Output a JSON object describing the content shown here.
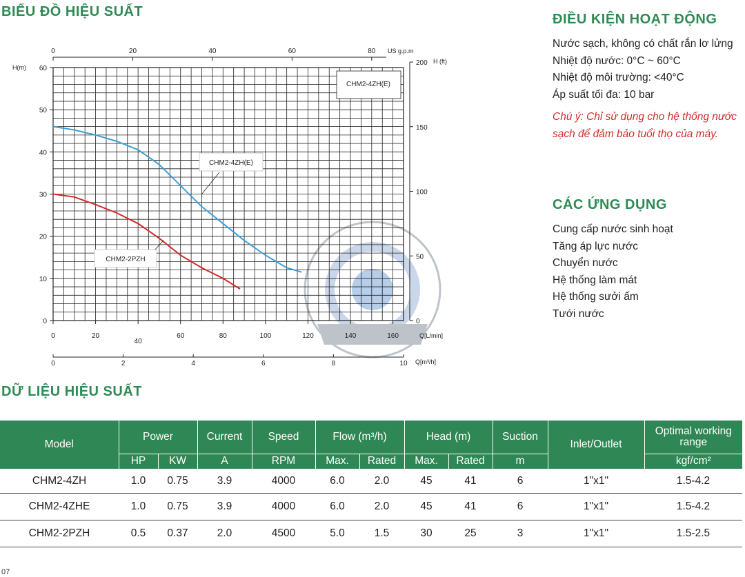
{
  "perf_chart_title": "BIỂU ĐỒ HIỆU SUẤT",
  "perf_data_title": "DỮ LIỆU HIỆU SUẤT",
  "conditions": {
    "title": "ĐIỀU KIỆN HOẠT ĐỘNG",
    "items": [
      "Nước sạch, không có chất rắn lơ lửng",
      "Nhiệt độ nước: 0°C ~ 60°C",
      "Nhiệt độ môi trường: <40°C",
      "Áp suất tối đa: 10 bar"
    ],
    "note": "Chú ý: Chỉ sử dụng cho hệ thống nước sạch để đảm bảo tuổi thọ của máy."
  },
  "applications": {
    "title": "CÁC ỨNG DỤNG",
    "items": [
      "Cung cấp nước sinh hoạt",
      "Tăng áp lực nước",
      "Chuyển nước",
      "Hệ thống làm mát",
      "Hệ thống sưởi ấm",
      "Tưới nước"
    ]
  },
  "chart_data": {
    "type": "line",
    "x_axis_lpm": {
      "label": "Q[L/min]",
      "range": [
        0,
        165
      ],
      "ticks": [
        "0",
        "20",
        "40",
        "60",
        "80",
        "100",
        "120",
        "140",
        "160"
      ]
    },
    "x_axis_m3h": {
      "label": "Q[m³/h]",
      "range": [
        0,
        10
      ],
      "ticks": [
        "0",
        "2",
        "4",
        "6",
        "8",
        "10"
      ]
    },
    "x_axis_usgpm": {
      "label": "US g.p.m",
      "range": [
        0,
        80
      ],
      "ticks": [
        "0",
        "20",
        "40",
        "60",
        "80"
      ]
    },
    "y_axis_m": {
      "label": "H(m)",
      "range": [
        0,
        60
      ],
      "ticks": [
        "0",
        "10",
        "20",
        "30",
        "40",
        "50",
        "60"
      ]
    },
    "y_axis_ft": {
      "label": "H (ft)",
      "range": [
        0,
        200
      ],
      "ticks": [
        "0",
        "50",
        "100",
        "150",
        "200"
      ]
    },
    "legend_box": "CHM2-4ZH(E)",
    "grid": true,
    "series": [
      {
        "name": "CHM2-4ZH(E)",
        "color": "#3b9fd6",
        "x": [
          0,
          10,
          20,
          30,
          40,
          50,
          60,
          70,
          80,
          90,
          100,
          110,
          117
        ],
        "y": [
          46,
          45.2,
          44,
          42.5,
          40.5,
          37,
          32,
          27,
          23,
          19,
          15.5,
          12.5,
          11.5
        ]
      },
      {
        "name": "CHM2-2PZH",
        "color": "#d62828",
        "x": [
          0,
          10,
          20,
          30,
          40,
          50,
          60,
          70,
          80,
          88
        ],
        "y": [
          30,
          29.3,
          27.5,
          25.5,
          23,
          19.5,
          15.5,
          12.5,
          10,
          7.5
        ]
      }
    ]
  },
  "table": {
    "headers": {
      "model": "Model",
      "power": "Power",
      "current": "Current",
      "speed": "Speed",
      "flow": "Flow (m³/h)",
      "head": "Head (m)",
      "suction": "Suction",
      "inlet": "Inlet/Outlet",
      "pressure": "Optimal working range"
    },
    "units": {
      "hp": "HP",
      "kw": "KW",
      "current": "A",
      "speed": "RPM",
      "flow_max": "Max.",
      "flow_rated": "Rated",
      "head_max": "Max.",
      "head_rated": "Rated",
      "suction": "m",
      "pressure": "kgf/cm²"
    },
    "rows": [
      [
        "CHM2-4ZH",
        "1.0",
        "0.75",
        "3.9",
        "4000",
        "6.0",
        "2.0",
        "45",
        "41",
        "6",
        "1\"x1\"",
        "1.5-4.2"
      ],
      [
        "CHM2-4ZHE",
        "1.0",
        "0.75",
        "3.9",
        "4000",
        "6.0",
        "2.0",
        "45",
        "41",
        "6",
        "1\"x1\"",
        "1.5-4.2"
      ],
      [
        "CHM2-2PZH",
        "0.5",
        "0.37",
        "2.0",
        "4500",
        "5.0",
        "1.5",
        "30",
        "25",
        "3",
        "1\"x1\"",
        "1.5-2.5"
      ]
    ]
  },
  "page_number": "07"
}
